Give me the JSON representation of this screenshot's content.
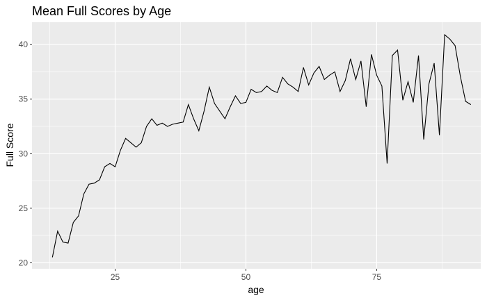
{
  "chart_data": {
    "type": "line",
    "title": "Mean Full Scores by Age",
    "xlabel": "age",
    "ylabel": "Full Score",
    "xlim": [
      9.1,
      94.9
    ],
    "ylim": [
      19.45,
      42.05
    ],
    "x_ticks": [
      25,
      50,
      75
    ],
    "y_ticks": [
      20,
      25,
      30,
      35,
      40
    ],
    "grid": true,
    "legend": "none",
    "colors": {
      "panel": "#ebebeb",
      "grid": "#ffffff",
      "line": "#000000",
      "tick": "#4d4d4d"
    },
    "series": [
      {
        "x": [
          13,
          14,
          15,
          16,
          17,
          18,
          19,
          20,
          21,
          22,
          23,
          24,
          25,
          26,
          27,
          28,
          29,
          30,
          31,
          32,
          33,
          34,
          35,
          36,
          37,
          38,
          39,
          40,
          41,
          42,
          43,
          44,
          45,
          46,
          47,
          48,
          49,
          50,
          51,
          52,
          53,
          54,
          55,
          56,
          57,
          58,
          59,
          60,
          61,
          62,
          63,
          64,
          65,
          66,
          67,
          68,
          69,
          70,
          71,
          72,
          73,
          74,
          75,
          76,
          77,
          78,
          79,
          80,
          81,
          82,
          83,
          84,
          85,
          86,
          87,
          88,
          89,
          90,
          91,
          92,
          93
        ],
        "y": [
          20.5,
          22.9,
          21.9,
          21.8,
          23.7,
          24.3,
          26.3,
          27.2,
          27.3,
          27.6,
          28.8,
          29.1,
          28.8,
          30.3,
          31.4,
          31.0,
          30.6,
          31.0,
          32.5,
          33.2,
          32.6,
          32.8,
          32.5,
          32.7,
          32.8,
          32.9,
          34.5,
          33.2,
          32.1,
          33.9,
          36.1,
          34.6,
          33.9,
          33.2,
          34.3,
          35.3,
          34.6,
          34.7,
          35.9,
          35.6,
          35.7,
          36.2,
          35.8,
          35.6,
          37.0,
          36.4,
          36.1,
          35.7,
          37.9,
          36.3,
          37.4,
          38.0,
          36.8,
          37.2,
          37.5,
          35.7,
          36.7,
          38.7,
          36.8,
          38.5,
          34.3,
          39.1,
          37.2,
          36.2,
          29.1,
          39.0,
          39.5,
          34.9,
          36.6,
          34.7,
          39.0,
          31.3,
          36.4,
          38.3,
          31.7,
          40.9,
          40.5,
          39.9,
          37.1,
          34.8,
          34.5
        ]
      }
    ]
  }
}
